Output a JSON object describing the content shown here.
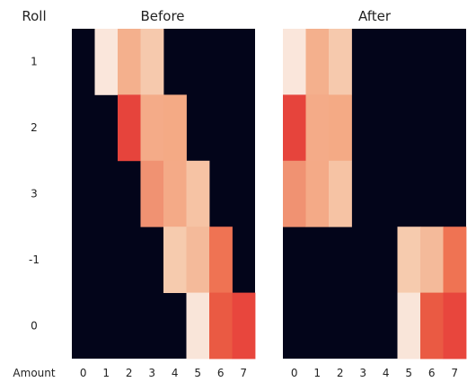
{
  "chart_data": [
    {
      "type": "heatmap",
      "title": "Before",
      "row_header": "Roll",
      "column_header": "Amount",
      "rows": [
        "1",
        "2",
        "3",
        "-1",
        "0"
      ],
      "columns": [
        "0",
        "1",
        "2",
        "3",
        "4",
        "5",
        "6",
        "7"
      ],
      "cells": [
        [
          null,
          "#fae6db",
          "#f4b08d",
          "#f6c9ad",
          null,
          null,
          null,
          null
        ],
        [
          null,
          null,
          "#e6443c",
          "#f4ab88",
          "#f4aa85",
          null,
          null,
          null
        ],
        [
          null,
          null,
          null,
          "#f09272",
          "#f4aa87",
          "#f6c3a4",
          null,
          null
        ],
        [
          null,
          null,
          null,
          null,
          "#f6cbae",
          "#f4ba9a",
          "#ef7353",
          null
        ],
        [
          null,
          null,
          null,
          null,
          null,
          "#f9e5d9",
          "#ea5a43",
          "#e8463d"
        ]
      ]
    },
    {
      "type": "heatmap",
      "title": "After",
      "rows": [
        "1",
        "2",
        "3",
        "-1",
        "0"
      ],
      "columns": [
        "0",
        "1",
        "2",
        "3",
        "4",
        "5",
        "6",
        "7"
      ],
      "cells": [
        [
          "#fae6db",
          "#f4b08d",
          "#f6c9ad",
          null,
          null,
          null,
          null,
          null
        ],
        [
          "#e6443c",
          "#f4ab88",
          "#f4aa85",
          null,
          null,
          null,
          null,
          null
        ],
        [
          "#f09272",
          "#f4aa87",
          "#f6c3a4",
          null,
          null,
          null,
          null,
          null
        ],
        [
          null,
          null,
          null,
          null,
          null,
          "#f6cbae",
          "#f4ba9a",
          "#ef7353"
        ],
        [
          null,
          null,
          null,
          null,
          null,
          "#f9e5d9",
          "#ea5a43",
          "#e8463d"
        ]
      ]
    }
  ],
  "colors": {
    "background_cell": "#03051a",
    "text": "#222222"
  }
}
